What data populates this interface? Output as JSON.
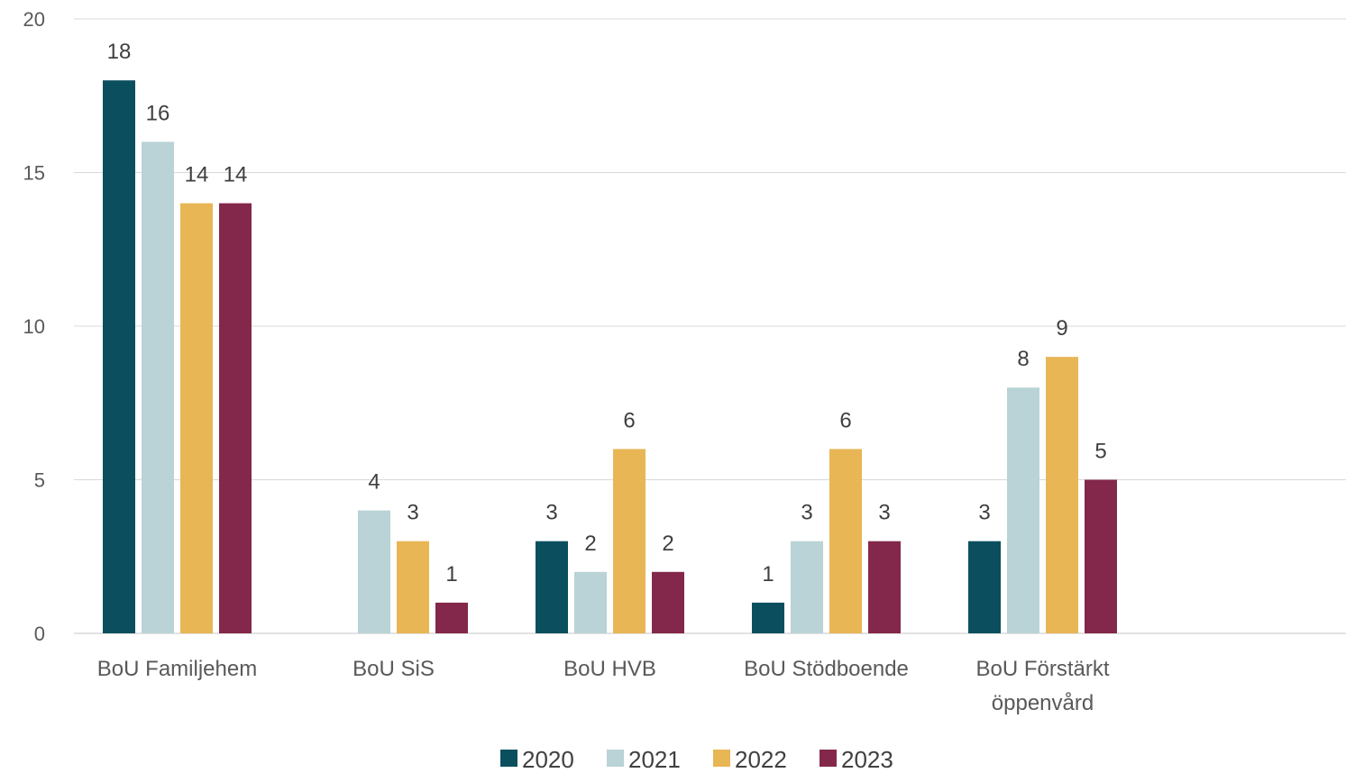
{
  "chart_data": {
    "type": "bar",
    "categories": [
      [
        "BoU Familjehem"
      ],
      [
        "BoU SiS"
      ],
      [
        "BoU HVB"
      ],
      [
        "BoU Stödboende"
      ],
      [
        "BoU Förstärkt",
        "öppenvård"
      ]
    ],
    "series": [
      {
        "name": "2020",
        "color": "#0b4f5e",
        "values": [
          18,
          0,
          3,
          1,
          3
        ]
      },
      {
        "name": "2021",
        "color": "#b9d3d6",
        "values": [
          16,
          4,
          2,
          3,
          8
        ]
      },
      {
        "name": "2022",
        "color": "#e8b655",
        "values": [
          14,
          3,
          6,
          6,
          9
        ]
      },
      {
        "name": "2023",
        "color": "#83284a",
        "values": [
          14,
          1,
          2,
          3,
          5
        ]
      }
    ],
    "ylim": [
      0,
      20
    ],
    "yticks": [
      0,
      5,
      10,
      15,
      20
    ],
    "grid": true,
    "gridColor": "#d9d9d9",
    "legend_position": "bottom"
  }
}
